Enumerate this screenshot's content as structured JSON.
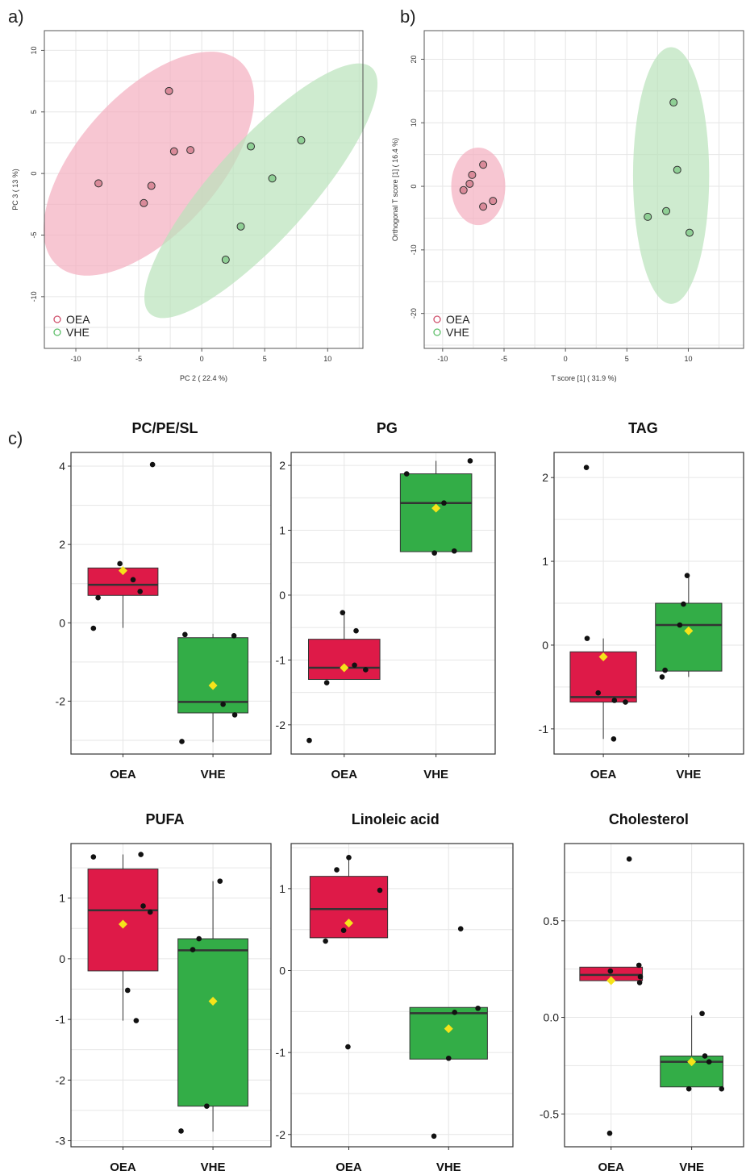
{
  "colors": {
    "oea_ellipse": "#f4aebf",
    "vhe_ellipse": "#b9e3bb",
    "oea_point": "#d98a99",
    "vhe_point": "#8fcf95",
    "oea_box": "#de1a48",
    "vhe_box": "#33ad47",
    "mean_marker": "#f5e31a",
    "grid": "#e6e6e6"
  },
  "chart_data": [
    {
      "panel_label": "a)",
      "type": "scatter",
      "xlabel": "PC 2 ( 22.4 %)",
      "ylabel": "PC 3 ( 13 %)",
      "xlim": [
        -12.5,
        12.8
      ],
      "ylim": [
        -14.2,
        11.6
      ],
      "xticks": [
        "-10",
        "-5",
        "0",
        "5",
        "10"
      ],
      "xtick_values": [
        -10,
        -5,
        0,
        5,
        10
      ],
      "yticks": [
        "-10",
        "-5",
        "0",
        "5",
        "10"
      ],
      "ytick_values": [
        -10,
        -5,
        0,
        5,
        10
      ],
      "grid": true,
      "legend_position": "bottom-left",
      "series": [
        {
          "name": "OEA",
          "x": [
            -2.6,
            -2.2,
            -0.9,
            -8.2,
            -4,
            -4.6
          ],
          "y": [
            6.7,
            1.8,
            1.9,
            -0.8,
            -1,
            -2.4
          ]
        },
        {
          "name": "VHE",
          "x": [
            7.9,
            3.9,
            5.6,
            3.1,
            1.9
          ],
          "y": [
            2.7,
            2.2,
            -0.4,
            -4.3,
            -7
          ]
        }
      ],
      "ellipses": [
        {
          "series": "OEA",
          "cx": -4.2,
          "cy": 0.8,
          "rx": 11,
          "ry": 5.6,
          "angle_deg": -48
        },
        {
          "series": "VHE",
          "cx": 4.7,
          "cy": -1.4,
          "rx": 13.3,
          "ry": 3.9,
          "angle_deg": -48
        }
      ]
    },
    {
      "panel_label": "b)",
      "type": "scatter",
      "xlabel": "T score [1] ( 31.9 %)",
      "ylabel": "Orthogonal T score [1] ( 16.4 %)",
      "xlim": [
        -11.5,
        14.5
      ],
      "ylim": [
        -25.5,
        24.5
      ],
      "xticks": [
        "-10",
        "-5",
        "0",
        "5",
        "10"
      ],
      "xtick_values": [
        -10,
        -5,
        0,
        5,
        10
      ],
      "yticks": [
        "-20",
        "-10",
        "0",
        "10",
        "20"
      ],
      "ytick_values": [
        -20,
        -10,
        0,
        10,
        20
      ],
      "grid": true,
      "legend_position": "bottom-left",
      "series": [
        {
          "name": "OEA",
          "x": [
            -6.7,
            -7.6,
            -7.8,
            -8.3,
            -5.9,
            -6.7
          ],
          "y": [
            3.4,
            1.8,
            0.4,
            -0.6,
            -2.3,
            -3.2
          ]
        },
        {
          "name": "VHE",
          "x": [
            8.8,
            9.1,
            6.7,
            8.2,
            10.1
          ],
          "y": [
            13.2,
            2.6,
            -4.8,
            -3.9,
            -7.3
          ]
        }
      ],
      "ellipses": [
        {
          "series": "OEA",
          "cx": -7.1,
          "cy": 0,
          "rx": 2.2,
          "ry": 6.1,
          "angle_deg": 0
        },
        {
          "series": "VHE",
          "cx": 8.6,
          "cy": 1.7,
          "rx": 3.1,
          "ry": 20.2,
          "angle_deg": 0
        }
      ]
    },
    {
      "type": "box",
      "title": "PC/PE/SL",
      "categories": [
        "OEA",
        "VHE"
      ],
      "ylim": [
        -3.35,
        4.35
      ],
      "yticks": [
        "-2",
        "0",
        "2",
        "4"
      ],
      "ytick_values": [
        -2,
        0,
        2,
        4
      ],
      "boxes": [
        {
          "q1": 0.7,
          "median": 0.97,
          "q3": 1.4,
          "whisker_low": -0.13,
          "whisker_high": 1.4,
          "mean": 1.33,
          "points": [
            {
              "x": -0.38,
              "y": -0.14
            },
            {
              "x": -0.32,
              "y": 0.64
            },
            {
              "x": -0.04,
              "y": 1.51
            },
            {
              "x": 0.13,
              "y": 1.1
            },
            {
              "x": 0.22,
              "y": 0.8
            },
            {
              "x": 0.38,
              "y": 4.04
            }
          ]
        },
        {
          "q1": -2.3,
          "median": -2.02,
          "q3": -0.38,
          "whisker_low": -3.05,
          "whisker_high": -0.28,
          "mean": -1.6,
          "points": [
            {
              "x": -0.4,
              "y": -3.03
            },
            {
              "x": -0.36,
              "y": -0.3
            },
            {
              "x": 0.13,
              "y": -2.08
            },
            {
              "x": 0.27,
              "y": -0.33
            },
            {
              "x": 0.28,
              "y": -2.35
            }
          ]
        }
      ]
    },
    {
      "type": "box",
      "title": "PG",
      "categories": [
        "OEA",
        "VHE"
      ],
      "ylim": [
        -2.45,
        2.2
      ],
      "yticks": [
        "-2",
        "-1",
        "0",
        "1",
        "2"
      ],
      "ytick_values": [
        -2,
        -1,
        0,
        1,
        2
      ],
      "boxes": [
        {
          "q1": -1.3,
          "median": -1.12,
          "q3": -0.68,
          "whisker_low": -1.3,
          "whisker_high": -0.28,
          "mean": -1.12,
          "points": [
            {
              "x": -0.44,
              "y": -2.24
            },
            {
              "x": -0.22,
              "y": -1.35
            },
            {
              "x": -0.02,
              "y": -0.27
            },
            {
              "x": 0.13,
              "y": -1.08
            },
            {
              "x": 0.15,
              "y": -0.55
            },
            {
              "x": 0.27,
              "y": -1.15
            }
          ]
        },
        {
          "q1": 0.67,
          "median": 1.42,
          "q3": 1.87,
          "whisker_low": 0.67,
          "whisker_high": 2.07,
          "mean": 1.34,
          "points": [
            {
              "x": -0.37,
              "y": 1.87
            },
            {
              "x": -0.02,
              "y": 0.65
            },
            {
              "x": 0.1,
              "y": 1.42
            },
            {
              "x": 0.23,
              "y": 0.68
            },
            {
              "x": 0.43,
              "y": 2.07
            }
          ]
        }
      ]
    },
    {
      "type": "box",
      "title": "TAG",
      "categories": [
        "OEA",
        "VHE"
      ],
      "ylim": [
        -1.3,
        2.3
      ],
      "yticks": [
        "-1",
        "0",
        "1",
        "2"
      ],
      "ytick_values": [
        -1,
        0,
        1,
        2
      ],
      "boxes": [
        {
          "q1": -0.68,
          "median": -0.62,
          "q3": -0.08,
          "whisker_low": -1.12,
          "whisker_high": 0.08,
          "mean": -0.14,
          "points": [
            {
              "x": -0.23,
              "y": 2.12
            },
            {
              "x": -0.22,
              "y": 0.08
            },
            {
              "x": -0.07,
              "y": -0.57
            },
            {
              "x": 0.14,
              "y": -1.12
            },
            {
              "x": 0.15,
              "y": -0.66
            },
            {
              "x": 0.3,
              "y": -0.68
            }
          ]
        },
        {
          "q1": -0.31,
          "median": 0.24,
          "q3": 0.5,
          "whisker_low": -0.38,
          "whisker_high": 0.83,
          "mean": 0.17,
          "points": [
            {
              "x": -0.36,
              "y": -0.38
            },
            {
              "x": -0.32,
              "y": -0.3
            },
            {
              "x": -0.12,
              "y": 0.24
            },
            {
              "x": -0.07,
              "y": 0.49
            },
            {
              "x": -0.02,
              "y": 0.83
            }
          ]
        }
      ]
    },
    {
      "type": "box",
      "title": "PUFA",
      "categories": [
        "OEA",
        "VHE"
      ],
      "ylim": [
        -3.1,
        1.9
      ],
      "yticks": [
        "-3",
        "-2",
        "-1",
        "0",
        "1"
      ],
      "ytick_values": [
        -3,
        -2,
        -1,
        0,
        1
      ],
      "boxes": [
        {
          "q1": -0.2,
          "median": 0.8,
          "q3": 1.48,
          "whisker_low": -1.02,
          "whisker_high": 1.72,
          "mean": 0.57,
          "points": [
            {
              "x": -0.38,
              "y": 1.68
            },
            {
              "x": 0.06,
              "y": -0.52
            },
            {
              "x": 0.17,
              "y": -1.02
            },
            {
              "x": 0.23,
              "y": 1.72
            },
            {
              "x": 0.26,
              "y": 0.87
            },
            {
              "x": 0.35,
              "y": 0.77
            }
          ]
        },
        {
          "q1": -2.43,
          "median": 0.14,
          "q3": 0.33,
          "whisker_low": -2.85,
          "whisker_high": 1.28,
          "mean": -0.7,
          "points": [
            {
              "x": -0.41,
              "y": -2.84
            },
            {
              "x": -0.26,
              "y": 0.15
            },
            {
              "x": -0.18,
              "y": 0.33
            },
            {
              "x": -0.08,
              "y": -2.43
            },
            {
              "x": 0.09,
              "y": 1.28
            }
          ]
        }
      ]
    },
    {
      "type": "box",
      "title": "Linoleic acid",
      "categories": [
        "OEA",
        "VHE"
      ],
      "ylim": [
        -2.15,
        1.55
      ],
      "yticks": [
        "-2",
        "-1",
        "0",
        "1"
      ],
      "ytick_values": [
        -2,
        -1,
        0,
        1
      ],
      "boxes": [
        {
          "q1": 0.4,
          "median": 0.75,
          "q3": 1.15,
          "whisker_low": 0.4,
          "whisker_high": 1.38,
          "mean": 0.58,
          "points": [
            {
              "x": -0.27,
              "y": 0.36
            },
            {
              "x": -0.14,
              "y": 1.23
            },
            {
              "x": -0.06,
              "y": 0.49
            },
            {
              "x": -0.01,
              "y": -0.93
            },
            {
              "x": 0.0,
              "y": 1.38
            },
            {
              "x": 0.36,
              "y": 0.98
            }
          ]
        },
        {
          "q1": -1.08,
          "median": -0.52,
          "q3": -0.45,
          "whisker_low": -1.08,
          "whisker_high": -0.45,
          "mean": -0.71,
          "points": [
            {
              "x": -0.17,
              "y": -2.02
            },
            {
              "x": -0.0,
              "y": -1.07
            },
            {
              "x": 0.07,
              "y": -0.51
            },
            {
              "x": 0.14,
              "y": 0.51
            },
            {
              "x": 0.34,
              "y": -0.46
            }
          ]
        }
      ]
    },
    {
      "type": "box",
      "title": "Cholesterol",
      "categories": [
        "OEA",
        "VHE"
      ],
      "ylim": [
        -0.67,
        0.9
      ],
      "yticks": [
        "-0.5",
        "0.0",
        "0.5"
      ],
      "ytick_values": [
        -0.5,
        0,
        0.5
      ],
      "boxes": [
        {
          "q1": 0.19,
          "median": 0.22,
          "q3": 0.26,
          "whisker_low": 0.19,
          "whisker_high": 0.26,
          "mean": 0.19,
          "points": [
            {
              "x": -0.02,
              "y": -0.6
            },
            {
              "x": -0.01,
              "y": 0.24
            },
            {
              "x": 0.26,
              "y": 0.82
            },
            {
              "x": 0.4,
              "y": 0.27
            },
            {
              "x": 0.41,
              "y": 0.18
            },
            {
              "x": 0.42,
              "y": 0.21
            }
          ]
        },
        {
          "q1": -0.36,
          "median": -0.23,
          "q3": -0.2,
          "whisker_low": -0.36,
          "whisker_high": 0.01,
          "mean": -0.23,
          "points": [
            {
              "x": -0.04,
              "y": -0.37
            },
            {
              "x": 0.15,
              "y": 0.02
            },
            {
              "x": 0.19,
              "y": -0.2
            },
            {
              "x": 0.25,
              "y": -0.23
            },
            {
              "x": 0.43,
              "y": -0.37
            }
          ]
        }
      ]
    }
  ],
  "figure_labels": {
    "panel_c": "c)"
  }
}
